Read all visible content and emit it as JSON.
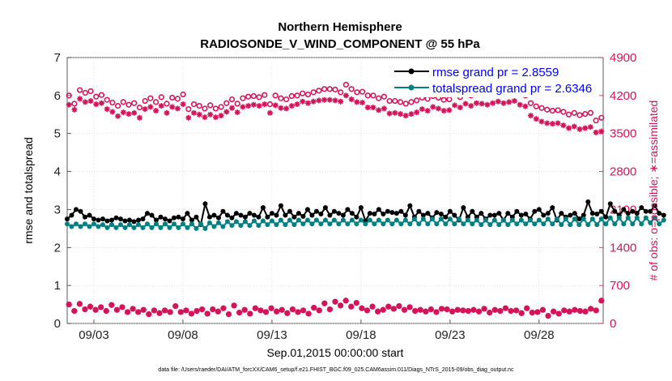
{
  "chart_data": {
    "type": "line",
    "title": "Northern Hemisphere",
    "subtitle": "RADIOSONDE_V_WIND_COMPONENT @ 55 hPa",
    "xlabel": "Sep.01,2015 00:00:00 start",
    "ylabel": "rmse and totalspread",
    "ylabel_right": "# of obs: o=possible; ∗=assimilated",
    "footnote": "data file: /Users/raeder/DAI/ATM_forcXX/CAM6_setup/f.e21.FHIST_BGC.f09_025.CAM6assim.011/Diags_NTrS_2015-09/obs_diag_output.nc",
    "xlim": [
      1.5,
      31.6
    ],
    "ylim": [
      0,
      7
    ],
    "ylim_right": [
      0,
      4900
    ],
    "x_ticks": [
      3,
      8,
      13,
      18,
      23,
      28
    ],
    "x_tick_labels": [
      "09/03",
      "09/08",
      "09/13",
      "09/18",
      "09/23",
      "09/28"
    ],
    "y_ticks": [
      0,
      1,
      2,
      3,
      4,
      5,
      6,
      7
    ],
    "y_right_ticks": [
      0,
      700,
      1400,
      2100,
      2800,
      3500,
      4200,
      4900
    ],
    "time_step_days": 0.25,
    "series": [
      {
        "name": "rmse grand pr = 2.8559",
        "axis": "left",
        "color": "#000000",
        "values": [
          2.75,
          2.85,
          3.0,
          2.95,
          2.8,
          2.85,
          2.75,
          2.72,
          2.75,
          2.7,
          2.72,
          2.78,
          2.75,
          2.7,
          2.72,
          2.68,
          2.72,
          2.75,
          2.9,
          2.85,
          2.72,
          2.8,
          2.75,
          2.7,
          2.78,
          2.8,
          2.75,
          2.9,
          2.72,
          2.8,
          2.6,
          3.15,
          2.8,
          2.85,
          2.78,
          2.95,
          2.85,
          2.78,
          2.9,
          2.85,
          2.8,
          2.9,
          2.85,
          2.8,
          3.05,
          2.8,
          2.9,
          2.85,
          3.1,
          2.85,
          2.95,
          2.8,
          2.9,
          2.82,
          3.0,
          2.85,
          2.95,
          2.88,
          3.05,
          2.85,
          2.95,
          2.9,
          2.85,
          3.0,
          2.9,
          2.8,
          3.05,
          2.7,
          2.9,
          2.88,
          3.0,
          2.88,
          2.95,
          2.92,
          2.9,
          2.95,
          2.85,
          3.1,
          2.8,
          2.95,
          2.85,
          2.9,
          2.78,
          2.92,
          2.88,
          2.8,
          2.95,
          2.85,
          2.72,
          3.05,
          2.8,
          2.95,
          2.8,
          2.9,
          2.75,
          2.85,
          2.85,
          2.9,
          2.72,
          2.9,
          2.8,
          2.95,
          2.85,
          2.88,
          2.75,
          2.95,
          3.0,
          2.85,
          2.9,
          3.05,
          2.72,
          2.9,
          2.8,
          2.85,
          2.9,
          2.75,
          2.85,
          3.2,
          2.9,
          2.88,
          2.95,
          2.8,
          3.15,
          2.95,
          2.85,
          3.0,
          2.9,
          2.95,
          2.9,
          3.05,
          2.95,
          2.95,
          3.1,
          2.9,
          2.85
        ]
      },
      {
        "name": "totalspread grand pr = 2.6346",
        "axis": "left",
        "color": "#008080",
        "values": [
          2.62,
          2.55,
          2.62,
          2.55,
          2.62,
          2.55,
          2.62,
          2.55,
          2.6,
          2.52,
          2.6,
          2.52,
          2.6,
          2.52,
          2.6,
          2.52,
          2.6,
          2.52,
          2.62,
          2.52,
          2.62,
          2.52,
          2.62,
          2.52,
          2.62,
          2.52,
          2.62,
          2.52,
          2.62,
          2.5,
          2.62,
          2.5,
          2.65,
          2.55,
          2.65,
          2.55,
          2.68,
          2.58,
          2.68,
          2.58,
          2.68,
          2.58,
          2.7,
          2.58,
          2.7,
          2.6,
          2.7,
          2.6,
          2.72,
          2.6,
          2.72,
          2.6,
          2.72,
          2.62,
          2.72,
          2.62,
          2.72,
          2.62,
          2.72,
          2.62,
          2.72,
          2.62,
          2.72,
          2.62,
          2.72,
          2.62,
          2.72,
          2.62,
          2.72,
          2.62,
          2.72,
          2.62,
          2.72,
          2.62,
          2.72,
          2.62,
          2.72,
          2.62,
          2.75,
          2.62,
          2.75,
          2.62,
          2.75,
          2.62,
          2.75,
          2.62,
          2.75,
          2.62,
          2.75,
          2.62,
          2.72,
          2.62,
          2.72,
          2.6,
          2.72,
          2.6,
          2.72,
          2.6,
          2.72,
          2.6,
          2.72,
          2.62,
          2.72,
          2.62,
          2.72,
          2.62,
          2.72,
          2.62,
          2.75,
          2.62,
          2.75,
          2.6,
          2.75,
          2.6,
          2.75,
          2.6,
          2.75,
          2.6,
          2.75,
          2.6,
          2.75,
          2.62,
          2.78,
          2.62,
          2.78,
          2.62,
          2.78,
          2.62,
          2.78,
          2.62,
          2.78,
          2.65,
          2.78,
          2.62,
          2.72
        ]
      },
      {
        "name": "possible",
        "axis": "right",
        "color": "#d4135a",
        "marker": "circle",
        "values": [
          4200,
          4050,
          4300,
          4250,
          4280,
          4180,
          4210,
          4120,
          4070,
          4010,
          4080,
          4030,
          4060,
          3980,
          4100,
          4150,
          4080,
          4170,
          4050,
          4160,
          4140,
          4220,
          3950,
          4040,
          4010,
          3960,
          4020,
          3960,
          3990,
          4060,
          4130,
          4050,
          4150,
          4180,
          4190,
          4170,
          4210,
          4040,
          4200,
          4150,
          4130,
          4190,
          4200,
          4240,
          4220,
          4260,
          4290,
          4320,
          4320,
          4310,
          4260,
          4400,
          4320,
          4260,
          4270,
          4200,
          4200,
          4150,
          4180,
          4100,
          4100,
          4080,
          4050,
          4080,
          4110,
          4160,
          4140,
          4190,
          4160,
          4120,
          4130,
          4220,
          4170,
          4240,
          4200,
          4260,
          4250,
          4230,
          4260,
          4290,
          4260,
          4280,
          4300,
          4220,
          4200,
          4060,
          4000,
          3970,
          3940,
          3920,
          3930,
          3900,
          3850,
          3880,
          3840,
          3860,
          3880,
          3740,
          3790
        ]
      },
      {
        "name": "assimilated",
        "axis": "right",
        "color": "#d4135a",
        "marker": "asterisk",
        "values": [
          4030,
          3940,
          4140,
          4080,
          4100,
          4040,
          4060,
          3950,
          3900,
          3820,
          3890,
          3860,
          3880,
          3790,
          3950,
          3990,
          3920,
          4010,
          3880,
          3990,
          3960,
          4040,
          3790,
          3880,
          3850,
          3800,
          3850,
          3800,
          3830,
          3900,
          3970,
          3890,
          3990,
          4010,
          4030,
          4010,
          4040,
          3880,
          4020,
          3970,
          3960,
          4010,
          4040,
          4090,
          4060,
          4090,
          4110,
          4120,
          4120,
          4110,
          4090,
          4200,
          4130,
          4080,
          4070,
          3980,
          3980,
          3930,
          3960,
          3870,
          3880,
          3860,
          3830,
          3860,
          3890,
          3950,
          3920,
          3990,
          3960,
          3920,
          3930,
          4020,
          3980,
          4050,
          4010,
          4060,
          4050,
          4030,
          4060,
          4090,
          4060,
          4080,
          4100,
          4030,
          4000,
          3830,
          3770,
          3720,
          3690,
          3680,
          3690,
          3650,
          3600,
          3630,
          3580,
          3600,
          3620,
          3520,
          3540
        ]
      },
      {
        "name": "possible (low)",
        "axis": "right",
        "color": "#d4135a",
        "marker": "circle",
        "values": [
          350,
          230,
          360,
          260,
          310,
          250,
          300,
          230,
          340,
          250,
          300,
          210,
          270,
          210,
          250,
          170,
          240,
          190,
          240,
          210,
          320,
          210,
          240,
          180,
          230,
          260,
          180,
          260,
          220,
          280,
          170,
          330,
          200,
          250,
          180,
          280,
          240,
          210,
          280,
          220,
          250,
          190,
          260,
          210,
          240,
          180,
          290,
          240,
          370,
          260,
          400,
          330,
          420,
          310,
          380,
          280,
          240,
          310,
          220,
          250,
          310,
          270,
          320,
          250,
          300,
          230,
          250,
          220,
          260,
          210,
          270,
          260,
          220,
          250,
          240,
          230,
          250,
          220,
          270,
          200,
          250,
          230,
          280,
          230,
          240,
          190,
          280,
          200,
          210,
          250,
          140,
          220,
          180,
          240,
          220,
          250,
          230,
          220,
          270,
          240,
          420
        ]
      },
      {
        "name": "assimilated (low)",
        "axis": "right",
        "color": "#d4135a",
        "marker": "asterisk",
        "values": [
          350,
          230,
          360,
          260,
          310,
          250,
          300,
          230,
          340,
          250,
          300,
          210,
          270,
          210,
          250,
          170,
          240,
          190,
          240,
          210,
          320,
          210,
          240,
          180,
          230,
          260,
          180,
          260,
          220,
          280,
          170,
          330,
          200,
          250,
          180,
          280,
          240,
          210,
          280,
          220,
          250,
          190,
          260,
          210,
          240,
          180,
          290,
          240,
          370,
          260,
          400,
          330,
          420,
          310,
          380,
          280,
          240,
          310,
          220,
          250,
          310,
          270,
          320,
          250,
          300,
          230,
          250,
          220,
          260,
          210,
          270,
          260,
          220,
          250,
          240,
          230,
          250,
          220,
          270,
          200,
          250,
          230,
          280,
          230,
          240,
          190,
          280,
          200,
          210,
          250,
          140,
          220,
          180,
          240,
          220,
          250,
          230,
          220,
          270,
          240,
          420
        ]
      }
    ]
  }
}
